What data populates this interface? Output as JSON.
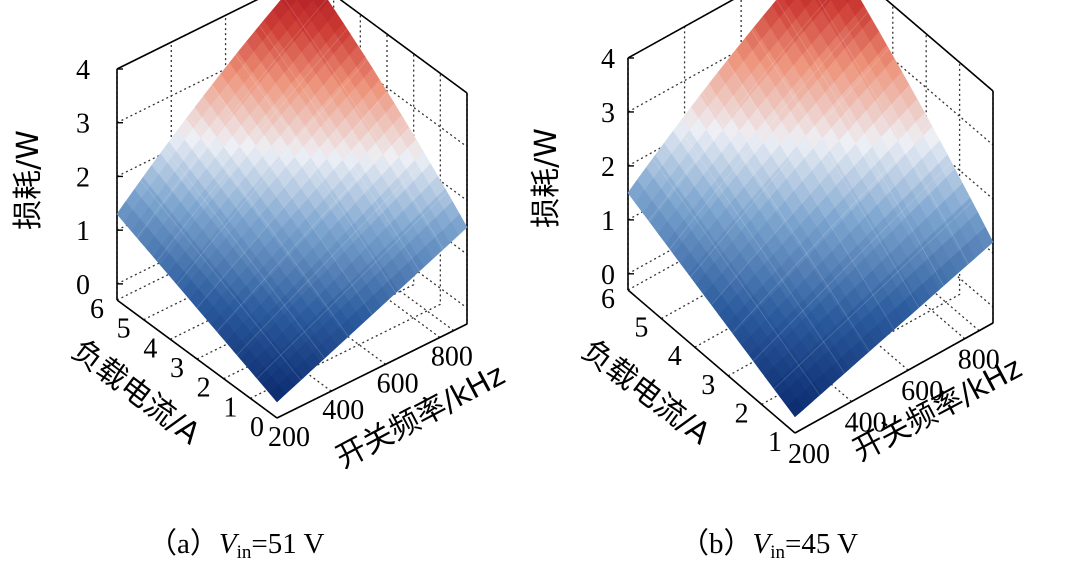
{
  "chart_data": [
    {
      "type": "surface",
      "panel_label": "（a）",
      "vin_symbol": "V",
      "vin_subscript": "in",
      "vin_value": "=51 V",
      "zlabel": "损耗/W",
      "ylabel": "负载电流/A",
      "xlabel": "开关频率/kHz",
      "x_ticks": [
        "200",
        "400",
        "600",
        "800"
      ],
      "y_ticks": [
        "0",
        "1",
        "2",
        "3",
        "4",
        "5",
        "6"
      ],
      "z_ticks": [
        "0",
        "1",
        "2",
        "3",
        "4"
      ],
      "xlim": [
        200,
        900
      ],
      "ylim": [
        0,
        6
      ],
      "zlim": [
        -0.3,
        4
      ],
      "grid": true,
      "colormap": "blue-white-red",
      "surface_corners": {
        "x_min_y_min": 0.0,
        "x_max_y_min": 1.5,
        "x_min_y_max": 1.3,
        "x_max_y_max": 4.1
      }
    },
    {
      "type": "surface",
      "panel_label": "（b）",
      "vin_symbol": "V",
      "vin_subscript": "in",
      "vin_value": "=45 V",
      "zlabel": "损耗/W",
      "ylabel": "负载电流/A",
      "xlabel": "开关频率/kHz",
      "x_ticks": [
        "200",
        "400",
        "600",
        "800"
      ],
      "y_ticks": [
        "1",
        "2",
        "3",
        "4",
        "5",
        "6"
      ],
      "z_ticks": [
        "0",
        "1",
        "2",
        "3",
        "4"
      ],
      "xlim": [
        200,
        900
      ],
      "ylim": [
        1,
        6
      ],
      "zlim": [
        -0.3,
        4
      ],
      "grid": true,
      "colormap": "blue-white-red",
      "surface_corners": {
        "x_min_y_min": 0.0,
        "x_max_y_min": 1.2,
        "x_min_y_max": 1.5,
        "x_max_y_max": 4.1
      }
    }
  ],
  "colors": {
    "low": "#0b2a6e",
    "mid": "#eef0f6",
    "high": "#a3121e",
    "axis": "#000000",
    "grid": "#333333"
  }
}
